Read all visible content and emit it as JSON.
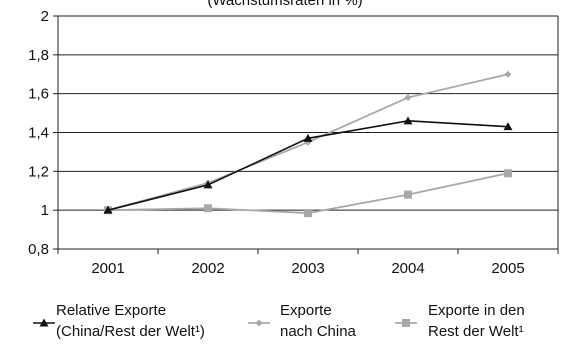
{
  "chart_data": {
    "type": "line",
    "title": "",
    "subtitle": "(Wachstumsraten in %)",
    "xlabel": "",
    "ylabel": "",
    "categories": [
      "2001",
      "2002",
      "2003",
      "2004",
      "2005"
    ],
    "ylim": [
      0.8,
      2.0
    ],
    "yticks": [
      0.8,
      1.0,
      1.2,
      1.4,
      1.6,
      1.8,
      2.0
    ],
    "ytick_labels": [
      "0,8",
      "1",
      "1,2",
      "1,4",
      "1,6",
      "1,8",
      "2"
    ],
    "grid": true,
    "legend_position": "bottom",
    "series": [
      {
        "name": "Relative Exporte\n(China/Rest der Welt¹)",
        "values": [
          1.0,
          1.13,
          1.37,
          1.46,
          1.43
        ],
        "color": "#111111",
        "marker": "triangle"
      },
      {
        "name": "Exporte\nnach China",
        "values": [
          1.0,
          1.14,
          1.35,
          1.58,
          1.7
        ],
        "color": "#a8a8a8",
        "marker": "diamond"
      },
      {
        "name": "Exporte in den\nRest der Welt¹",
        "values": [
          1.0,
          1.01,
          0.985,
          1.08,
          1.19
        ],
        "color": "#a8a8a8",
        "marker": "square"
      }
    ]
  }
}
